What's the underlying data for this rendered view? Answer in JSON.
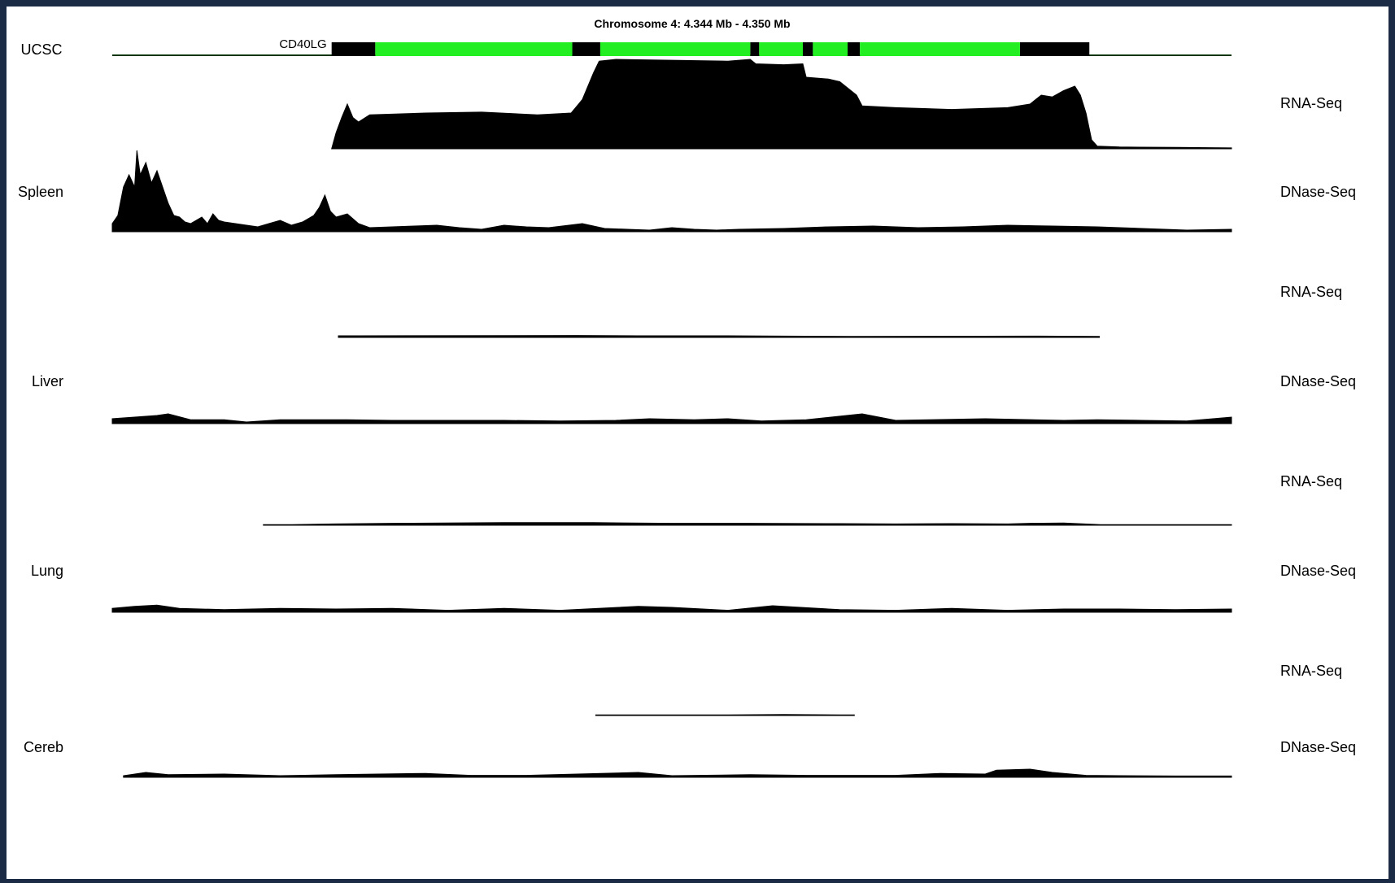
{
  "chart_data": {
    "type": "area",
    "title": "Chromosome 4: 4.344 Mb - 4.350 Mb",
    "gene": {
      "name": "CD40LG",
      "track_label": "UCSC",
      "range": [
        0,
        1
      ],
      "utr_segments": [
        [
          0.196,
          0.235
        ],
        [
          0.411,
          0.436
        ],
        [
          0.57,
          0.578
        ],
        [
          0.617,
          0.626
        ],
        [
          0.657,
          0.668
        ],
        [
          0.811,
          0.873
        ]
      ],
      "exon_segments": [
        [
          0.235,
          0.411
        ],
        [
          0.436,
          0.57
        ],
        [
          0.578,
          0.617
        ],
        [
          0.626,
          0.657
        ],
        [
          0.668,
          0.811
        ]
      ],
      "line_color": "#003300",
      "exon_color": "#22ee22",
      "utr_color": "#000000"
    },
    "tracks": [
      {
        "tissue": "",
        "assay": "RNA-Seq",
        "series": [
          [
            0.196,
            0
          ],
          [
            0.2,
            0.18
          ],
          [
            0.205,
            0.35
          ],
          [
            0.21,
            0.5
          ],
          [
            0.215,
            0.35
          ],
          [
            0.22,
            0.3
          ],
          [
            0.23,
            0.38
          ],
          [
            0.28,
            0.4
          ],
          [
            0.33,
            0.41
          ],
          [
            0.38,
            0.38
          ],
          [
            0.41,
            0.4
          ],
          [
            0.42,
            0.55
          ],
          [
            0.43,
            0.85
          ],
          [
            0.435,
            0.98
          ],
          [
            0.45,
            1.0
          ],
          [
            0.5,
            0.99
          ],
          [
            0.55,
            0.98
          ],
          [
            0.57,
            1.0
          ],
          [
            0.575,
            0.95
          ],
          [
            0.6,
            0.94
          ],
          [
            0.617,
            0.95
          ],
          [
            0.62,
            0.8
          ],
          [
            0.64,
            0.78
          ],
          [
            0.65,
            0.75
          ],
          [
            0.665,
            0.6
          ],
          [
            0.67,
            0.48
          ],
          [
            0.7,
            0.46
          ],
          [
            0.75,
            0.44
          ],
          [
            0.8,
            0.46
          ],
          [
            0.82,
            0.5
          ],
          [
            0.83,
            0.6
          ],
          [
            0.84,
            0.58
          ],
          [
            0.85,
            0.65
          ],
          [
            0.86,
            0.7
          ],
          [
            0.865,
            0.6
          ],
          [
            0.87,
            0.4
          ],
          [
            0.875,
            0.1
          ],
          [
            0.88,
            0.03
          ],
          [
            0.9,
            0.02
          ],
          [
            0.95,
            0.015
          ],
          [
            1.0,
            0.01
          ]
        ]
      },
      {
        "tissue": "Spleen",
        "assay": "DNase-Seq",
        "series": [
          [
            0,
            0.1
          ],
          [
            0.005,
            0.2
          ],
          [
            0.01,
            0.55
          ],
          [
            0.015,
            0.7
          ],
          [
            0.02,
            0.55
          ],
          [
            0.022,
            1.0
          ],
          [
            0.025,
            0.7
          ],
          [
            0.03,
            0.85
          ],
          [
            0.035,
            0.6
          ],
          [
            0.04,
            0.75
          ],
          [
            0.045,
            0.55
          ],
          [
            0.05,
            0.35
          ],
          [
            0.055,
            0.2
          ],
          [
            0.06,
            0.18
          ],
          [
            0.065,
            0.12
          ],
          [
            0.07,
            0.1
          ],
          [
            0.075,
            0.14
          ],
          [
            0.08,
            0.18
          ],
          [
            0.085,
            0.1
          ],
          [
            0.09,
            0.22
          ],
          [
            0.095,
            0.14
          ],
          [
            0.1,
            0.12
          ],
          [
            0.11,
            0.1
          ],
          [
            0.12,
            0.08
          ],
          [
            0.13,
            0.06
          ],
          [
            0.14,
            0.1
          ],
          [
            0.15,
            0.14
          ],
          [
            0.16,
            0.08
          ],
          [
            0.17,
            0.12
          ],
          [
            0.18,
            0.2
          ],
          [
            0.185,
            0.3
          ],
          [
            0.19,
            0.45
          ],
          [
            0.195,
            0.25
          ],
          [
            0.2,
            0.18
          ],
          [
            0.21,
            0.22
          ],
          [
            0.22,
            0.1
          ],
          [
            0.23,
            0.05
          ],
          [
            0.25,
            0.06
          ],
          [
            0.27,
            0.07
          ],
          [
            0.29,
            0.08
          ],
          [
            0.31,
            0.05
          ],
          [
            0.33,
            0.03
          ],
          [
            0.35,
            0.08
          ],
          [
            0.37,
            0.06
          ],
          [
            0.39,
            0.05
          ],
          [
            0.42,
            0.1
          ],
          [
            0.44,
            0.04
          ],
          [
            0.46,
            0.03
          ],
          [
            0.48,
            0.02
          ],
          [
            0.5,
            0.05
          ],
          [
            0.52,
            0.03
          ],
          [
            0.54,
            0.02
          ],
          [
            0.56,
            0.03
          ],
          [
            0.6,
            0.04
          ],
          [
            0.64,
            0.06
          ],
          [
            0.68,
            0.07
          ],
          [
            0.72,
            0.05
          ],
          [
            0.76,
            0.06
          ],
          [
            0.8,
            0.08
          ],
          [
            0.84,
            0.07
          ],
          [
            0.88,
            0.06
          ],
          [
            0.92,
            0.04
          ],
          [
            0.96,
            0.02
          ],
          [
            1.0,
            0.03
          ]
        ]
      },
      {
        "tissue": "",
        "assay": "RNA-Seq",
        "series": [
          [
            0.202,
            0.05
          ],
          [
            0.218,
            0.05
          ],
          [
            0.415,
            0.06
          ],
          [
            0.47,
            0.05
          ],
          [
            0.55,
            0.05
          ],
          [
            0.6,
            0.04
          ],
          [
            0.66,
            0.03
          ],
          [
            0.828,
            0.04
          ],
          [
            0.882,
            0.03
          ]
        ]
      },
      {
        "tissue": "Liver",
        "assay": "DNase-Seq",
        "series": [
          [
            0,
            0.15
          ],
          [
            0.02,
            0.2
          ],
          [
            0.04,
            0.25
          ],
          [
            0.05,
            0.3
          ],
          [
            0.07,
            0.12
          ],
          [
            0.1,
            0.12
          ],
          [
            0.12,
            0.05
          ],
          [
            0.15,
            0.12
          ],
          [
            0.18,
            0.12
          ],
          [
            0.21,
            0.12
          ],
          [
            0.25,
            0.1
          ],
          [
            0.35,
            0.1
          ],
          [
            0.4,
            0.08
          ],
          [
            0.45,
            0.1
          ],
          [
            0.48,
            0.15
          ],
          [
            0.52,
            0.12
          ],
          [
            0.55,
            0.15
          ],
          [
            0.58,
            0.08
          ],
          [
            0.62,
            0.12
          ],
          [
            0.67,
            0.3
          ],
          [
            0.7,
            0.1
          ],
          [
            0.73,
            0.12
          ],
          [
            0.78,
            0.15
          ],
          [
            0.85,
            0.1
          ],
          [
            0.88,
            0.12
          ],
          [
            0.92,
            0.1
          ],
          [
            0.96,
            0.08
          ],
          [
            1.0,
            0.2
          ]
        ]
      },
      {
        "tissue": "",
        "assay": "RNA-Seq",
        "series": [
          [
            0.135,
            0.02
          ],
          [
            0.16,
            0.02
          ],
          [
            0.198,
            0.04
          ],
          [
            0.25,
            0.06
          ],
          [
            0.35,
            0.08
          ],
          [
            0.43,
            0.08
          ],
          [
            0.5,
            0.06
          ],
          [
            0.57,
            0.06
          ],
          [
            0.65,
            0.05
          ],
          [
            0.7,
            0.04
          ],
          [
            0.75,
            0.05
          ],
          [
            0.8,
            0.04
          ],
          [
            0.82,
            0.06
          ],
          [
            0.85,
            0.07
          ],
          [
            0.883,
            0.02
          ],
          [
            0.96,
            0.02
          ],
          [
            1.0,
            0.02
          ]
        ]
      },
      {
        "tissue": "Lung",
        "assay": "DNase-Seq",
        "series": [
          [
            0,
            0.12
          ],
          [
            0.02,
            0.18
          ],
          [
            0.04,
            0.22
          ],
          [
            0.06,
            0.12
          ],
          [
            0.1,
            0.08
          ],
          [
            0.15,
            0.12
          ],
          [
            0.2,
            0.1
          ],
          [
            0.25,
            0.12
          ],
          [
            0.3,
            0.06
          ],
          [
            0.35,
            0.12
          ],
          [
            0.4,
            0.06
          ],
          [
            0.47,
            0.18
          ],
          [
            0.5,
            0.15
          ],
          [
            0.55,
            0.06
          ],
          [
            0.59,
            0.2
          ],
          [
            0.65,
            0.08
          ],
          [
            0.7,
            0.06
          ],
          [
            0.75,
            0.12
          ],
          [
            0.8,
            0.06
          ],
          [
            0.85,
            0.1
          ],
          [
            0.9,
            0.1
          ],
          [
            0.95,
            0.08
          ],
          [
            1.0,
            0.1
          ]
        ]
      },
      {
        "tissue": "",
        "assay": "RNA-Seq",
        "series": [
          [
            0.432,
            0.02
          ],
          [
            0.55,
            0.02
          ],
          [
            0.6,
            0.03
          ],
          [
            0.65,
            0.02
          ],
          [
            0.663,
            0.02
          ]
        ]
      },
      {
        "tissue": "Cereb",
        "assay": "DNase-Seq",
        "series": [
          [
            0.01,
            0.05
          ],
          [
            0.03,
            0.15
          ],
          [
            0.05,
            0.08
          ],
          [
            0.1,
            0.1
          ],
          [
            0.15,
            0.05
          ],
          [
            0.2,
            0.08
          ],
          [
            0.28,
            0.12
          ],
          [
            0.32,
            0.06
          ],
          [
            0.37,
            0.06
          ],
          [
            0.47,
            0.15
          ],
          [
            0.5,
            0.05
          ],
          [
            0.57,
            0.08
          ],
          [
            0.62,
            0.06
          ],
          [
            0.7,
            0.06
          ],
          [
            0.74,
            0.12
          ],
          [
            0.78,
            0.1
          ],
          [
            0.79,
            0.22
          ],
          [
            0.82,
            0.25
          ],
          [
            0.84,
            0.15
          ],
          [
            0.87,
            0.06
          ],
          [
            0.9,
            0.05
          ],
          [
            0.95,
            0.04
          ],
          [
            1.0,
            0.04
          ]
        ]
      }
    ]
  }
}
